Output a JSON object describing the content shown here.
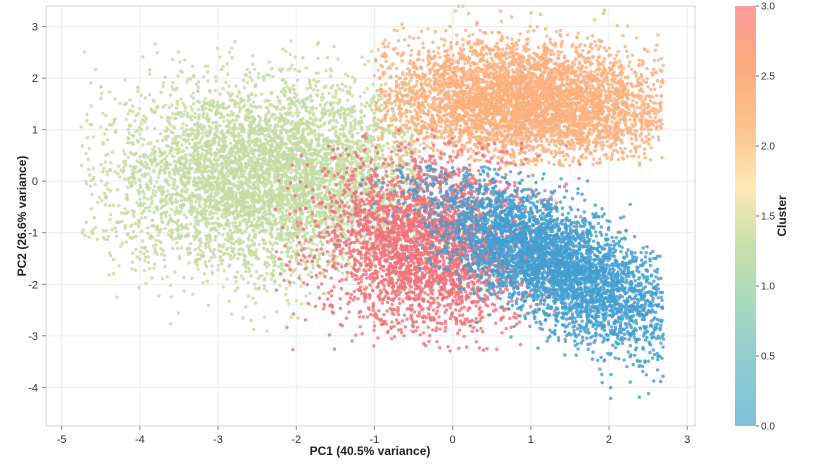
{
  "chart_data": {
    "type": "scatter",
    "title": "",
    "xlabel": "PC1 (40.5% variance)",
    "ylabel": "PC2 (26.6% variance)",
    "xlim": [
      -5.2,
      3.1
    ],
    "ylim": [
      -4.75,
      3.4
    ],
    "xticks": [
      -5,
      -4,
      -3,
      -2,
      -1,
      0,
      1,
      2,
      3
    ],
    "yticks": [
      -4,
      -3,
      -2,
      -1,
      0,
      1,
      2,
      3
    ],
    "grid": true,
    "colorbar": {
      "label": "Cluster",
      "range": [
        0.0,
        3.0
      ],
      "ticks": [
        "0.0",
        "0.5",
        "1.0",
        "1.5",
        "2.0",
        "2.5",
        "3.0"
      ],
      "colors": [
        "#7fc0dc",
        "#8ccbd0",
        "#a6d8c0",
        "#c8e0a8",
        "#ffe8b4",
        "#fdc38c",
        "#fba97c",
        "#fd9b9b"
      ]
    },
    "series": [
      {
        "cluster": 1,
        "color": "#c4dca4",
        "center": [
          -2.3,
          0.1
        ],
        "spread": [
          1.05,
          0.95
        ],
        "rotation": 0.2,
        "x_range": [
          -4.75,
          -0.4
        ],
        "y_range": [
          -3.0,
          2.75
        ],
        "points": 5200
      },
      {
        "cluster": 2,
        "color": "#fbb07e",
        "center": [
          0.9,
          1.55
        ],
        "spread": [
          0.95,
          0.55
        ],
        "rotation": -0.12,
        "x_range": [
          -1.0,
          2.7
        ],
        "y_range": [
          0.3,
          3.4
        ],
        "points": 4600
      },
      {
        "cluster": 3,
        "color": "#f0727a",
        "center": [
          -0.3,
          -1.2
        ],
        "spread": [
          0.7,
          0.85
        ],
        "rotation": 0.1,
        "x_range": [
          -2.3,
          1.7
        ],
        "y_range": [
          -3.3,
          1.0
        ],
        "points": 3300
      },
      {
        "cluster": 0,
        "color": "#449fcf",
        "center": [
          1.3,
          -1.6
        ],
        "spread": [
          0.45,
          1.05
        ],
        "rotation": 0.75,
        "x_range": [
          -1.8,
          2.7
        ],
        "y_range": [
          -4.55,
          0.3
        ],
        "points": 4000
      }
    ]
  }
}
